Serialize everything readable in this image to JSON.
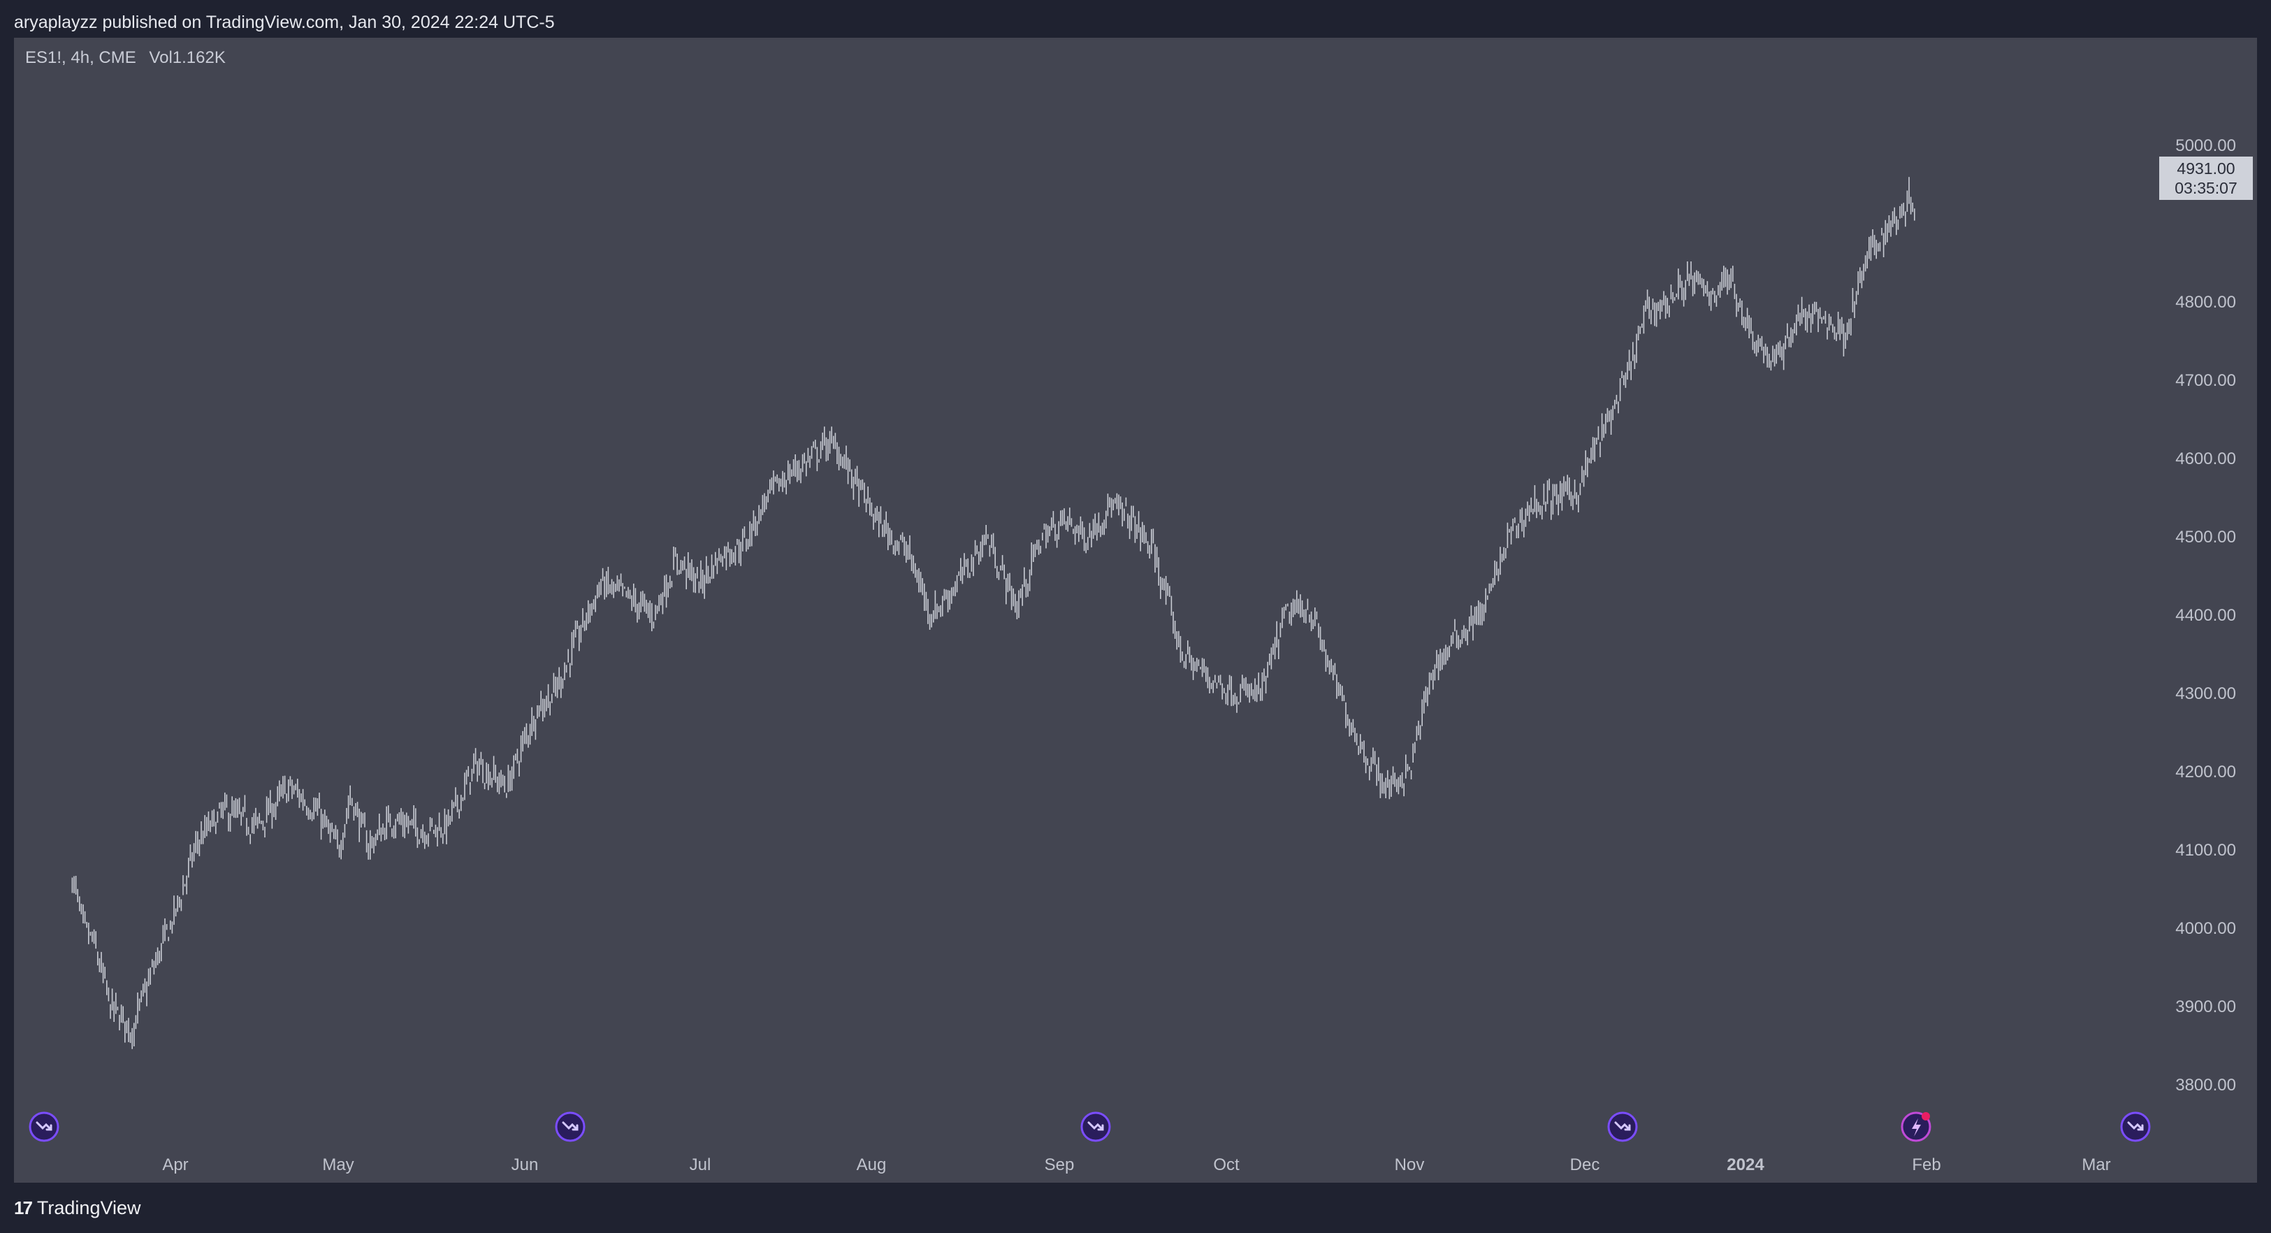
{
  "header": {
    "publish_text": "aryaplayzz published on TradingView.com, Jan 30, 2024 22:24 UTC-5"
  },
  "symbol": {
    "name": "ES1!, 4h, CME",
    "volume": "Vol1.162K"
  },
  "last_price": {
    "price": "4931.00",
    "countdown": "03:35:07"
  },
  "footer": {
    "logo_text": "TradingView"
  },
  "colors": {
    "background": "#1f2230",
    "panel": "#434551",
    "candles": "#c9ccd4",
    "axis_text": "#c0c3cd",
    "event_icon": "#7b4dff",
    "event_icon_alert": "#e91e63"
  },
  "icons": [
    "dividend-event-icon",
    "earnings-alert-icon",
    "tradingview-logo-icon"
  ],
  "chart_data": {
    "type": "line",
    "title": "ES1!, 4h, CME",
    "xlabel": "",
    "ylabel": "",
    "y_ticks": [
      "5000.00",
      "4800.00",
      "4700.00",
      "4600.00",
      "4500.00",
      "4400.00",
      "4300.00",
      "4200.00",
      "4100.00",
      "4000.00",
      "3900.00",
      "3800.00"
    ],
    "x_ticks": [
      "Apr",
      "May",
      "Jun",
      "Jul",
      "Aug",
      "Sep",
      "Oct",
      "Nov",
      "Dec",
      "2024",
      "Feb",
      "Mar"
    ],
    "ylim": [
      3800,
      5000
    ],
    "grid": false,
    "series": [
      {
        "x": [
          "2023-03-13",
          "2023-03-15",
          "2023-03-17",
          "2023-03-20",
          "2023-03-24",
          "2023-03-28",
          "2023-04-01",
          "2023-04-05",
          "2023-04-10",
          "2023-04-16",
          "2023-04-22",
          "2023-04-27",
          "2023-05-01",
          "2023-05-03",
          "2023-05-06",
          "2023-05-10",
          "2023-05-15",
          "2023-05-19",
          "2023-05-24",
          "2023-05-29",
          "2023-06-03",
          "2023-06-06",
          "2023-06-10",
          "2023-06-14",
          "2023-06-19",
          "2023-06-23",
          "2023-06-27",
          "2023-07-01",
          "2023-07-05",
          "2023-07-09",
          "2023-07-13",
          "2023-07-17",
          "2023-07-21",
          "2023-07-24",
          "2023-07-26",
          "2023-07-29",
          "2023-08-02",
          "2023-08-07",
          "2023-08-11",
          "2023-08-16",
          "2023-08-20",
          "2023-08-25",
          "2023-08-29",
          "2023-09-02",
          "2023-09-06",
          "2023-09-10",
          "2023-09-14",
          "2023-09-18",
          "2023-09-23",
          "2023-09-28",
          "2023-10-03",
          "2023-10-07",
          "2023-10-11",
          "2023-10-15",
          "2023-10-20",
          "2023-10-24",
          "2023-10-28",
          "2023-11-01",
          "2023-11-05",
          "2023-11-09",
          "2023-11-14",
          "2023-11-18",
          "2023-11-22",
          "2023-11-26",
          "2023-11-30",
          "2023-12-02",
          "2023-12-05",
          "2023-12-09",
          "2023-12-13",
          "2023-12-17",
          "2023-12-21",
          "2023-12-25",
          "2023-12-29",
          "2024-01-02",
          "2024-01-06",
          "2024-01-10",
          "2024-01-14",
          "2024-01-18",
          "2024-01-22",
          "2024-01-26",
          "2024-01-29",
          "2024-01-30"
        ],
        "y": [
          4065,
          4000,
          3980,
          3900,
          3870,
          3950,
          4020,
          4110,
          4150,
          4130,
          4180,
          4150,
          4100,
          4170,
          4105,
          4140,
          4125,
          4130,
          4210,
          4180,
          4280,
          4300,
          4370,
          4440,
          4420,
          4400,
          4470,
          4440,
          4480,
          4490,
          4550,
          4580,
          4600,
          4620,
          4610,
          4570,
          4520,
          4480,
          4400,
          4450,
          4500,
          4410,
          4500,
          4520,
          4500,
          4540,
          4520,
          4480,
          4350,
          4320,
          4300,
          4300,
          4400,
          4410,
          4300,
          4230,
          4180,
          4200,
          4330,
          4370,
          4410,
          4500,
          4540,
          4550,
          4560,
          4600,
          4640,
          4700,
          4790,
          4800,
          4830,
          4810,
          4830,
          4760,
          4720,
          4780,
          4780,
          4760,
          4860,
          4900,
          4930,
          4931
        ]
      }
    ]
  }
}
